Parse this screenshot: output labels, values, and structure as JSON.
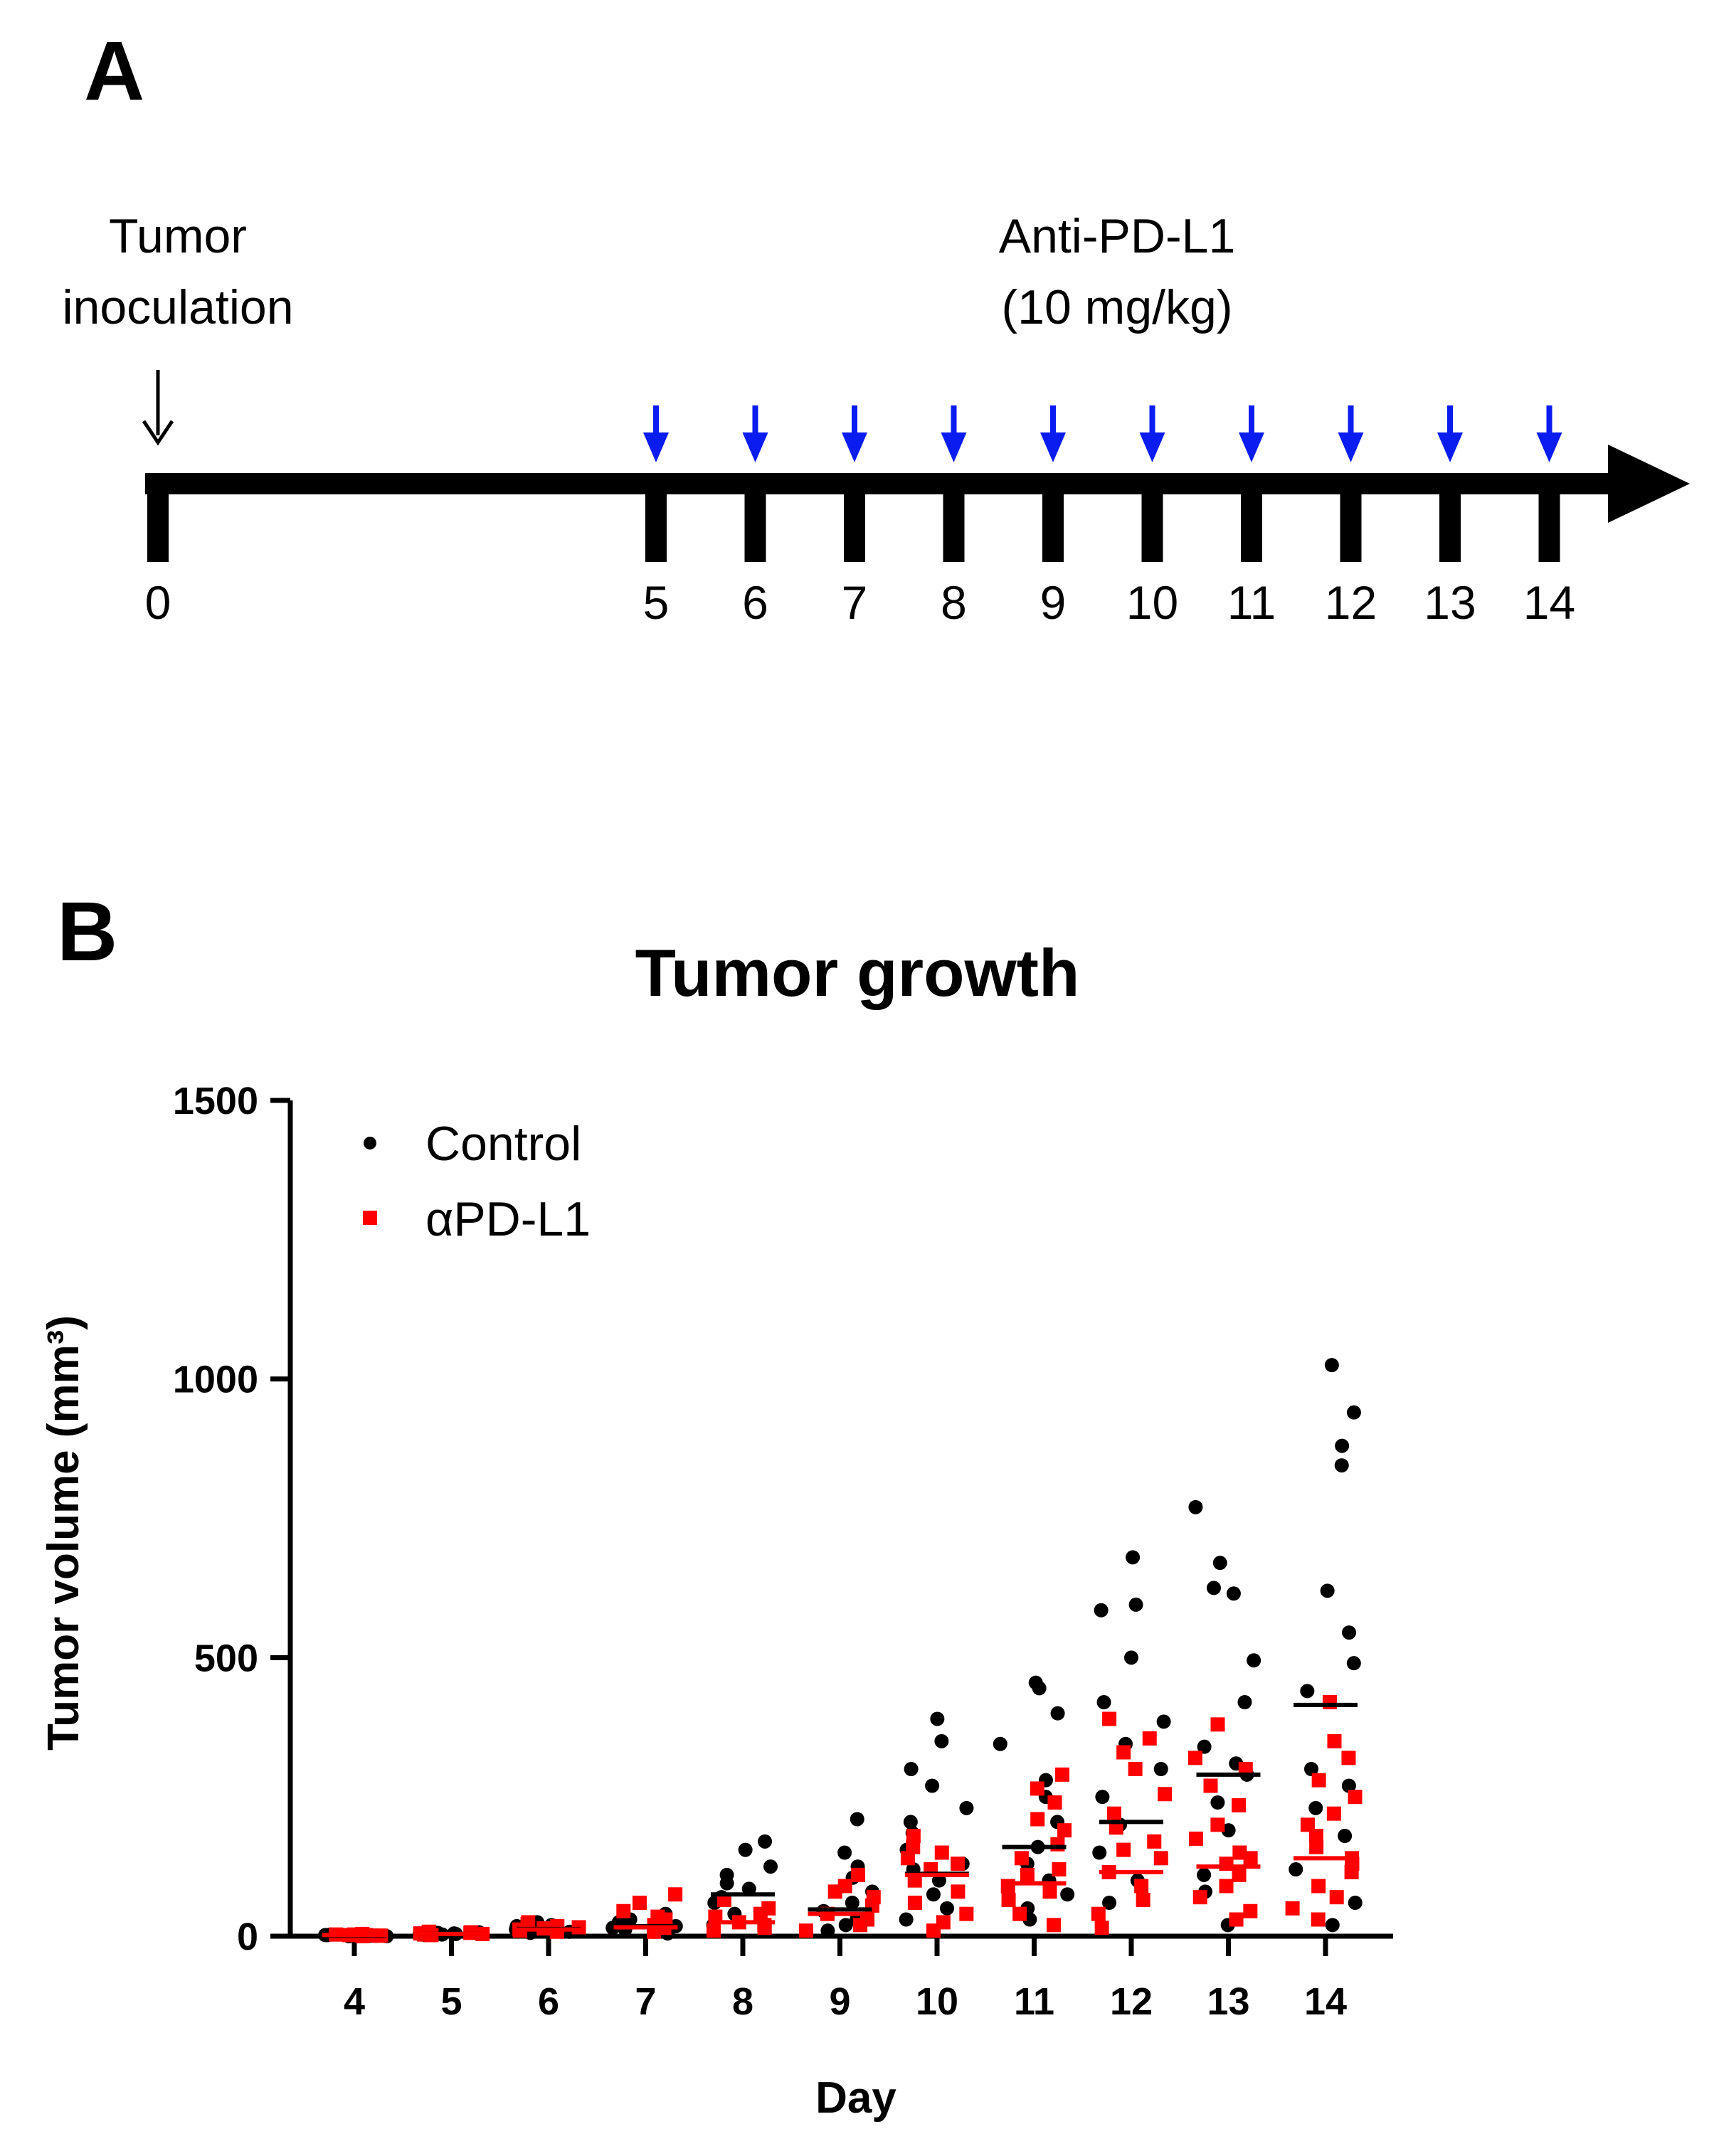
{
  "panel_a": {
    "letter": "A",
    "inoculation_label_line1": "Tumor",
    "inoculation_label_line2": "inoculation",
    "treatment_label_line1": "Anti-PD-L1",
    "treatment_label_line2": "(10 mg/kg)",
    "timeline_days": [
      "0",
      "5",
      "6",
      "7",
      "8",
      "9",
      "10",
      "11",
      "12",
      "13",
      "14"
    ],
    "treatment_days": [
      "5",
      "6",
      "7",
      "8",
      "9",
      "10",
      "11",
      "12",
      "13",
      "14"
    ],
    "colors": {
      "timeline": "#000000",
      "treatment_arrow": "#0a1cf0",
      "inoculation_arrow": "#000000"
    }
  },
  "panel_b": {
    "letter": "B"
  },
  "chart_data": {
    "type": "scatter",
    "title": "Tumor growth",
    "xlabel": "Day",
    "ylabel": "Tumor volume (mm³)",
    "ylim": [
      0,
      1500
    ],
    "yticks": [
      0,
      500,
      1000,
      1500
    ],
    "categories": [
      "4",
      "5",
      "6",
      "7",
      "8",
      "9",
      "10",
      "11",
      "12",
      "13",
      "14"
    ],
    "legend_position": "top-left",
    "colors": {
      "Control": "#000000",
      "αPD-L1": "#ff0000"
    },
    "series": [
      {
        "name": "Control",
        "marker": "circle",
        "means": [
          1,
          4,
          13,
          18,
          75,
          48,
          112,
          160,
          205,
          290,
          415
        ],
        "points": [
          [
            1,
            2,
            0,
            1,
            3,
            1,
            2,
            0
          ],
          [
            4,
            3,
            6,
            5,
            2,
            4,
            7,
            3
          ],
          [
            14,
            25,
            10,
            18,
            8,
            12,
            20,
            6
          ],
          [
            30,
            18,
            8,
            25,
            12,
            5,
            40,
            15,
            22
          ],
          [
            170,
            155,
            125,
            95,
            70,
            60,
            40,
            20,
            85,
            110
          ],
          [
            210,
            150,
            105,
            80,
            60,
            45,
            30,
            20,
            10,
            125
          ],
          [
            390,
            350,
            300,
            270,
            230,
            185,
            155,
            130,
            100,
            75,
            50,
            30,
            205,
            120
          ],
          [
            455,
            445,
            400,
            345,
            280,
            250,
            205,
            160,
            130,
            100,
            75,
            50,
            30
          ],
          [
            680,
            595,
            585,
            500,
            385,
            345,
            300,
            250,
            200,
            150,
            100,
            60,
            420
          ],
          [
            770,
            670,
            625,
            615,
            495,
            420,
            340,
            310,
            290,
            240,
            190,
            110,
            80,
            20
          ],
          [
            1025,
            940,
            880,
            845,
            620,
            545,
            490,
            440,
            300,
            270,
            230,
            180,
            120,
            60,
            20
          ]
        ]
      },
      {
        "name": "αPD-L1",
        "marker": "square",
        "means": [
          2,
          4,
          12,
          16,
          25,
          40,
          110,
          95,
          115,
          125,
          140
        ],
        "points": [
          [
            1,
            3,
            0,
            2,
            4,
            1,
            2,
            3
          ],
          [
            5,
            3,
            7,
            4,
            6,
            2,
            8
          ],
          [
            18,
            10,
            22,
            14,
            8,
            25,
            12,
            16
          ],
          [
            75,
            60,
            45,
            30,
            15,
            8,
            20,
            35
          ],
          [
            65,
            50,
            35,
            25,
            15,
            10,
            40,
            20
          ],
          [
            110,
            90,
            70,
            55,
            40,
            30,
            20,
            10,
            80
          ],
          [
            180,
            160,
            140,
            120,
            100,
            80,
            60,
            40,
            25,
            10,
            150,
            130
          ],
          [
            290,
            265,
            240,
            210,
            190,
            165,
            140,
            120,
            90,
            65,
            40,
            20,
            110,
            80
          ],
          [
            390,
            355,
            330,
            300,
            255,
            220,
            195,
            170,
            140,
            115,
            90,
            65,
            40,
            15,
            155
          ],
          [
            380,
            320,
            300,
            270,
            235,
            200,
            175,
            150,
            130,
            110,
            90,
            70,
            45,
            30,
            140
          ],
          [
            420,
            350,
            320,
            280,
            250,
            220,
            200,
            180,
            160,
            140,
            115,
            90,
            70,
            50,
            30,
            130
          ]
        ]
      }
    ]
  }
}
